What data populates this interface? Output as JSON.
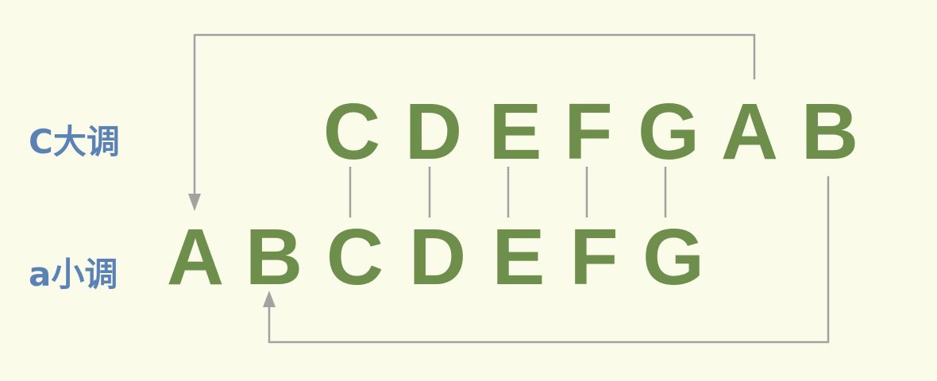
{
  "major_row": {
    "label": "C大调",
    "notes": [
      "C",
      "D",
      "E",
      "F",
      "G",
      "A",
      "B"
    ]
  },
  "minor_row": {
    "label": "a小调",
    "notes": [
      "A",
      "B",
      "C",
      "D",
      "E",
      "F",
      "G"
    ]
  },
  "colors": {
    "background": "#fbfbea",
    "note": "#6e8f4c",
    "label": "#5b82b5",
    "connector": "#a2a2a2"
  }
}
